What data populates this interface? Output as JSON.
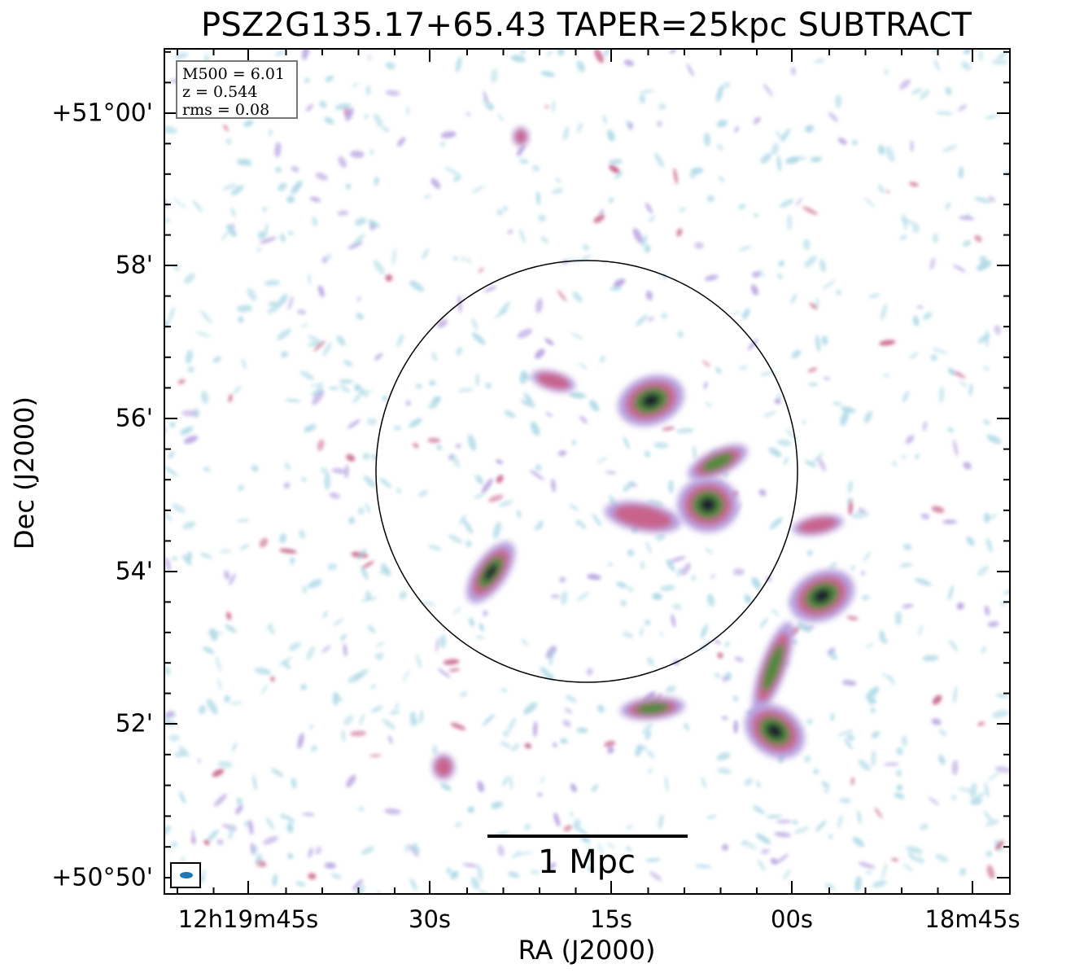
{
  "title": "PSZ2G135.17+65.43 TAPER=25kpc SUBTRACT",
  "axes": {
    "xlabel": "RA (J2000)",
    "ylabel": "Dec (J2000)",
    "x_ticks": [
      "12h19m45s",
      "30s",
      "15s",
      "00s",
      "18m45s"
    ],
    "y_ticks": [
      "+51°00'",
      "58'",
      "56'",
      "54'",
      "52'",
      "+50°50'"
    ]
  },
  "info": {
    "mass": "M500 = 6.01",
    "redshift": "z = 0.544",
    "rms": "rms = 0.08"
  },
  "scalebar": {
    "label": "1 Mpc"
  },
  "colors": {
    "faint": "#aed9e6",
    "low": "#b7a2e0",
    "mid": "#c8648c",
    "high": "#4f8a3c",
    "peak": "#1a1a2e",
    "beam": "#1f77b4",
    "circle": "#000000"
  }
}
